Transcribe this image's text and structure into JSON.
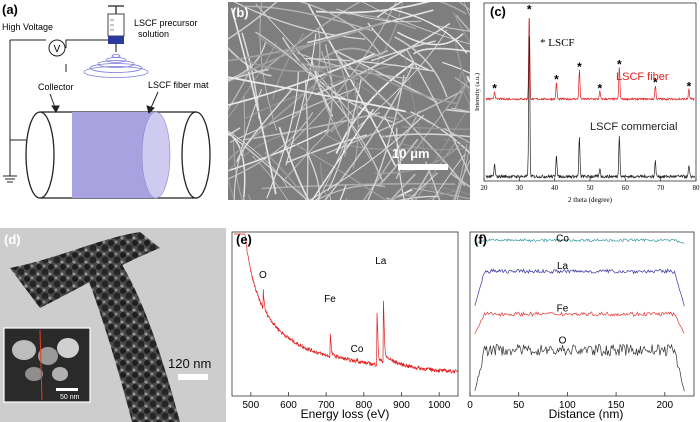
{
  "panels": {
    "a": {
      "label": "(a)",
      "texts": {
        "high_voltage": "High Voltage",
        "voltmeter": "V",
        "precursor_line1": "LSCF precursor",
        "precursor_line2": "solution",
        "collector": "Collector",
        "fiber_mat": "LSCF fiber mat"
      }
    },
    "b": {
      "label": "(b)",
      "scale_bar": "10 μm"
    },
    "c": {
      "label": "(c)"
    },
    "d": {
      "label": "(d)",
      "scale_bar": "120 nm",
      "inset_scale_bar": "50 nm"
    },
    "e": {
      "label": "(e)"
    },
    "f": {
      "label": "(f)"
    }
  },
  "chart_data": [
    {
      "panel": "c",
      "type": "line",
      "xlabel": "2 theta (degree)",
      "ylabel": "Intensity (a.u.)",
      "xlim": [
        20,
        80
      ],
      "x_ticks": [
        20,
        30,
        40,
        50,
        60,
        70,
        80
      ],
      "grid": false,
      "series": [
        {
          "name": "LSCF fiber",
          "color": "#e02020",
          "peaks": [
            {
              "x": 23.0,
              "h": 0.08
            },
            {
              "x": 32.8,
              "h": 0.9
            },
            {
              "x": 40.5,
              "h": 0.17
            },
            {
              "x": 47.0,
              "h": 0.3
            },
            {
              "x": 52.8,
              "h": 0.08
            },
            {
              "x": 58.3,
              "h": 0.33
            },
            {
              "x": 68.5,
              "h": 0.14
            },
            {
              "x": 78.0,
              "h": 0.1
            }
          ]
        },
        {
          "name": "LSCF commercial",
          "color": "#222222",
          "peaks": [
            {
              "x": 23.0,
              "h": 0.08
            },
            {
              "x": 32.8,
              "h": 1.0
            },
            {
              "x": 40.5,
              "h": 0.15
            },
            {
              "x": 47.0,
              "h": 0.26
            },
            {
              "x": 52.8,
              "h": 0.05
            },
            {
              "x": 58.3,
              "h": 0.28
            },
            {
              "x": 68.5,
              "h": 0.1
            },
            {
              "x": 78.0,
              "h": 0.07
            }
          ]
        }
      ],
      "star_marks": [
        23.0,
        32.8,
        40.5,
        47.0,
        52.8,
        58.3,
        68.5,
        78.0
      ],
      "annotations": {
        "star_legend": "* LSCF"
      }
    },
    {
      "panel": "e",
      "type": "line",
      "xlabel": "Energy loss (eV)",
      "xlim": [
        450,
        1050
      ],
      "x_ticks": [
        500,
        600,
        700,
        800,
        900,
        1000
      ],
      "series": [
        {
          "name": "",
          "color": "#e02020",
          "edges": [
            {
              "label": "O",
              "x": 532,
              "h": 0.12
            },
            {
              "label": "Fe",
              "x": 710,
              "h": 0.14
            },
            {
              "label": "Co",
              "x": 780,
              "h": 0.02
            },
            {
              "label": "La",
              "x": 834,
              "h": 0.34
            },
            {
              "label": "La",
              "x": 851,
              "h": 0.4
            }
          ]
        }
      ],
      "labels": [
        {
          "text": "O",
          "x": 532
        },
        {
          "text": "Fe",
          "x": 710
        },
        {
          "text": "Co",
          "x": 782
        },
        {
          "text": "La",
          "x": 845
        }
      ]
    },
    {
      "panel": "f",
      "type": "line",
      "xlabel": "Distance (nm)",
      "xlim": [
        0,
        230
      ],
      "x_ticks": [
        0,
        50,
        100,
        150,
        200
      ],
      "range_start": 5,
      "range_end": 220,
      "series": [
        {
          "name": "Co",
          "color": "#3a9aa8",
          "base": 0.93,
          "plateau": 0.95,
          "noise": 0.008
        },
        {
          "name": "La",
          "color": "#3a36a0",
          "base": 0.55,
          "plateau": 0.76,
          "noise": 0.012
        },
        {
          "name": "Fe",
          "color": "#e03a3a",
          "base": 0.38,
          "plateau": 0.5,
          "noise": 0.012
        },
        {
          "name": "O",
          "color": "#333333",
          "base": 0.03,
          "plateau": 0.28,
          "noise": 0.035
        }
      ]
    }
  ]
}
